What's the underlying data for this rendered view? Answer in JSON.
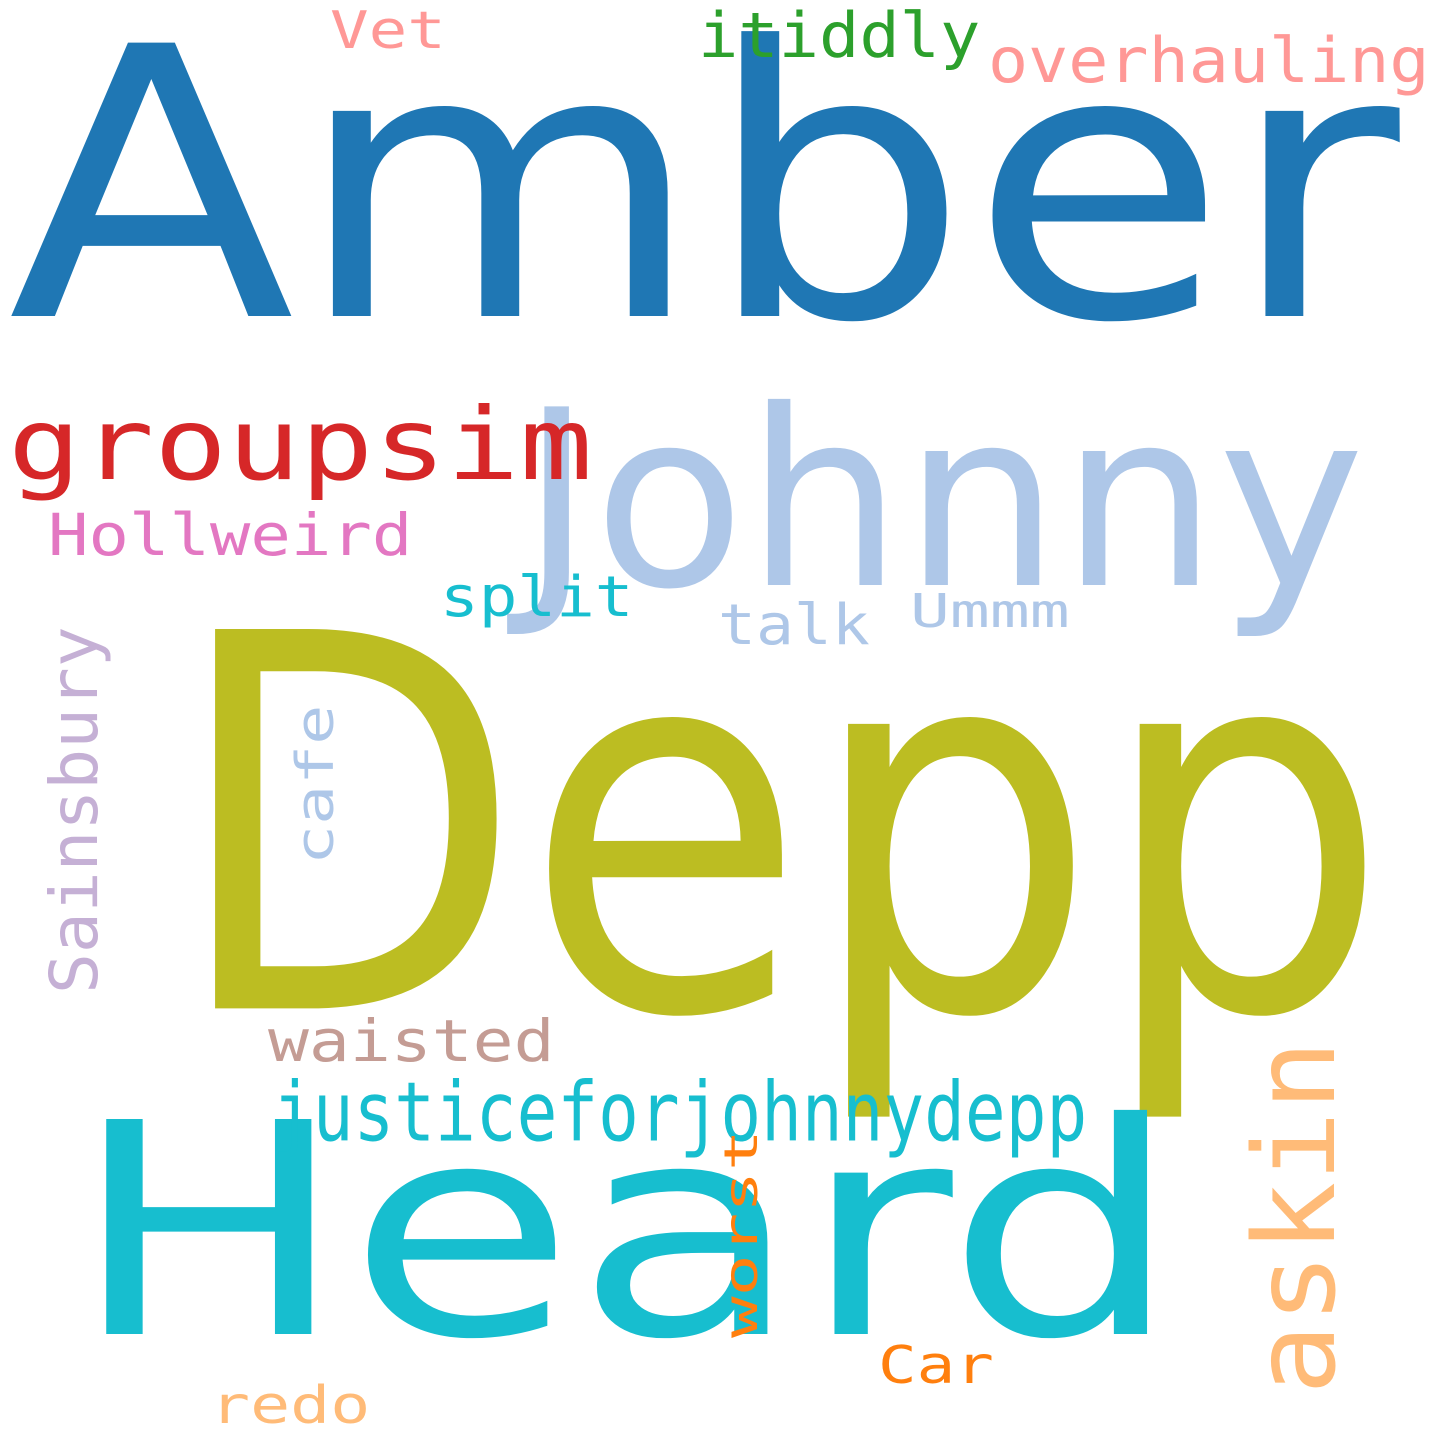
{
  "words": [
    {
      "text": "Amber",
      "color": "#1f77b4"
    },
    {
      "text": "Depp",
      "color": "#bcbd22"
    },
    {
      "text": "Heard",
      "color": "#17becf"
    },
    {
      "text": "Johnny",
      "color": "#aec7e8"
    },
    {
      "text": "groupsim",
      "color": "#d62728"
    },
    {
      "text": "justiceforjohnnydepp",
      "color": "#17becf"
    },
    {
      "text": "askin",
      "color": "#ffbb78"
    },
    {
      "text": "overhauling",
      "color": "#ff9896"
    },
    {
      "text": "itiddly",
      "color": "#2ca02c"
    },
    {
      "text": "Hollweird",
      "color": "#e377c2"
    },
    {
      "text": "waisted",
      "color": "#c49c94"
    },
    {
      "text": "Sainsbury",
      "color": "#c5b0d5"
    },
    {
      "text": "split",
      "color": "#17becf"
    },
    {
      "text": "Ummm",
      "color": "#aec7e8"
    },
    {
      "text": "talk",
      "color": "#aec7e8"
    },
    {
      "text": "cafe",
      "color": "#aec7e8"
    },
    {
      "text": "worst",
      "color": "#ff7f0e"
    },
    {
      "text": "Vet",
      "color": "#ff9896"
    },
    {
      "text": "Car",
      "color": "#ff7f0e"
    },
    {
      "text": "redo",
      "color": "#ffbb78"
    }
  ]
}
